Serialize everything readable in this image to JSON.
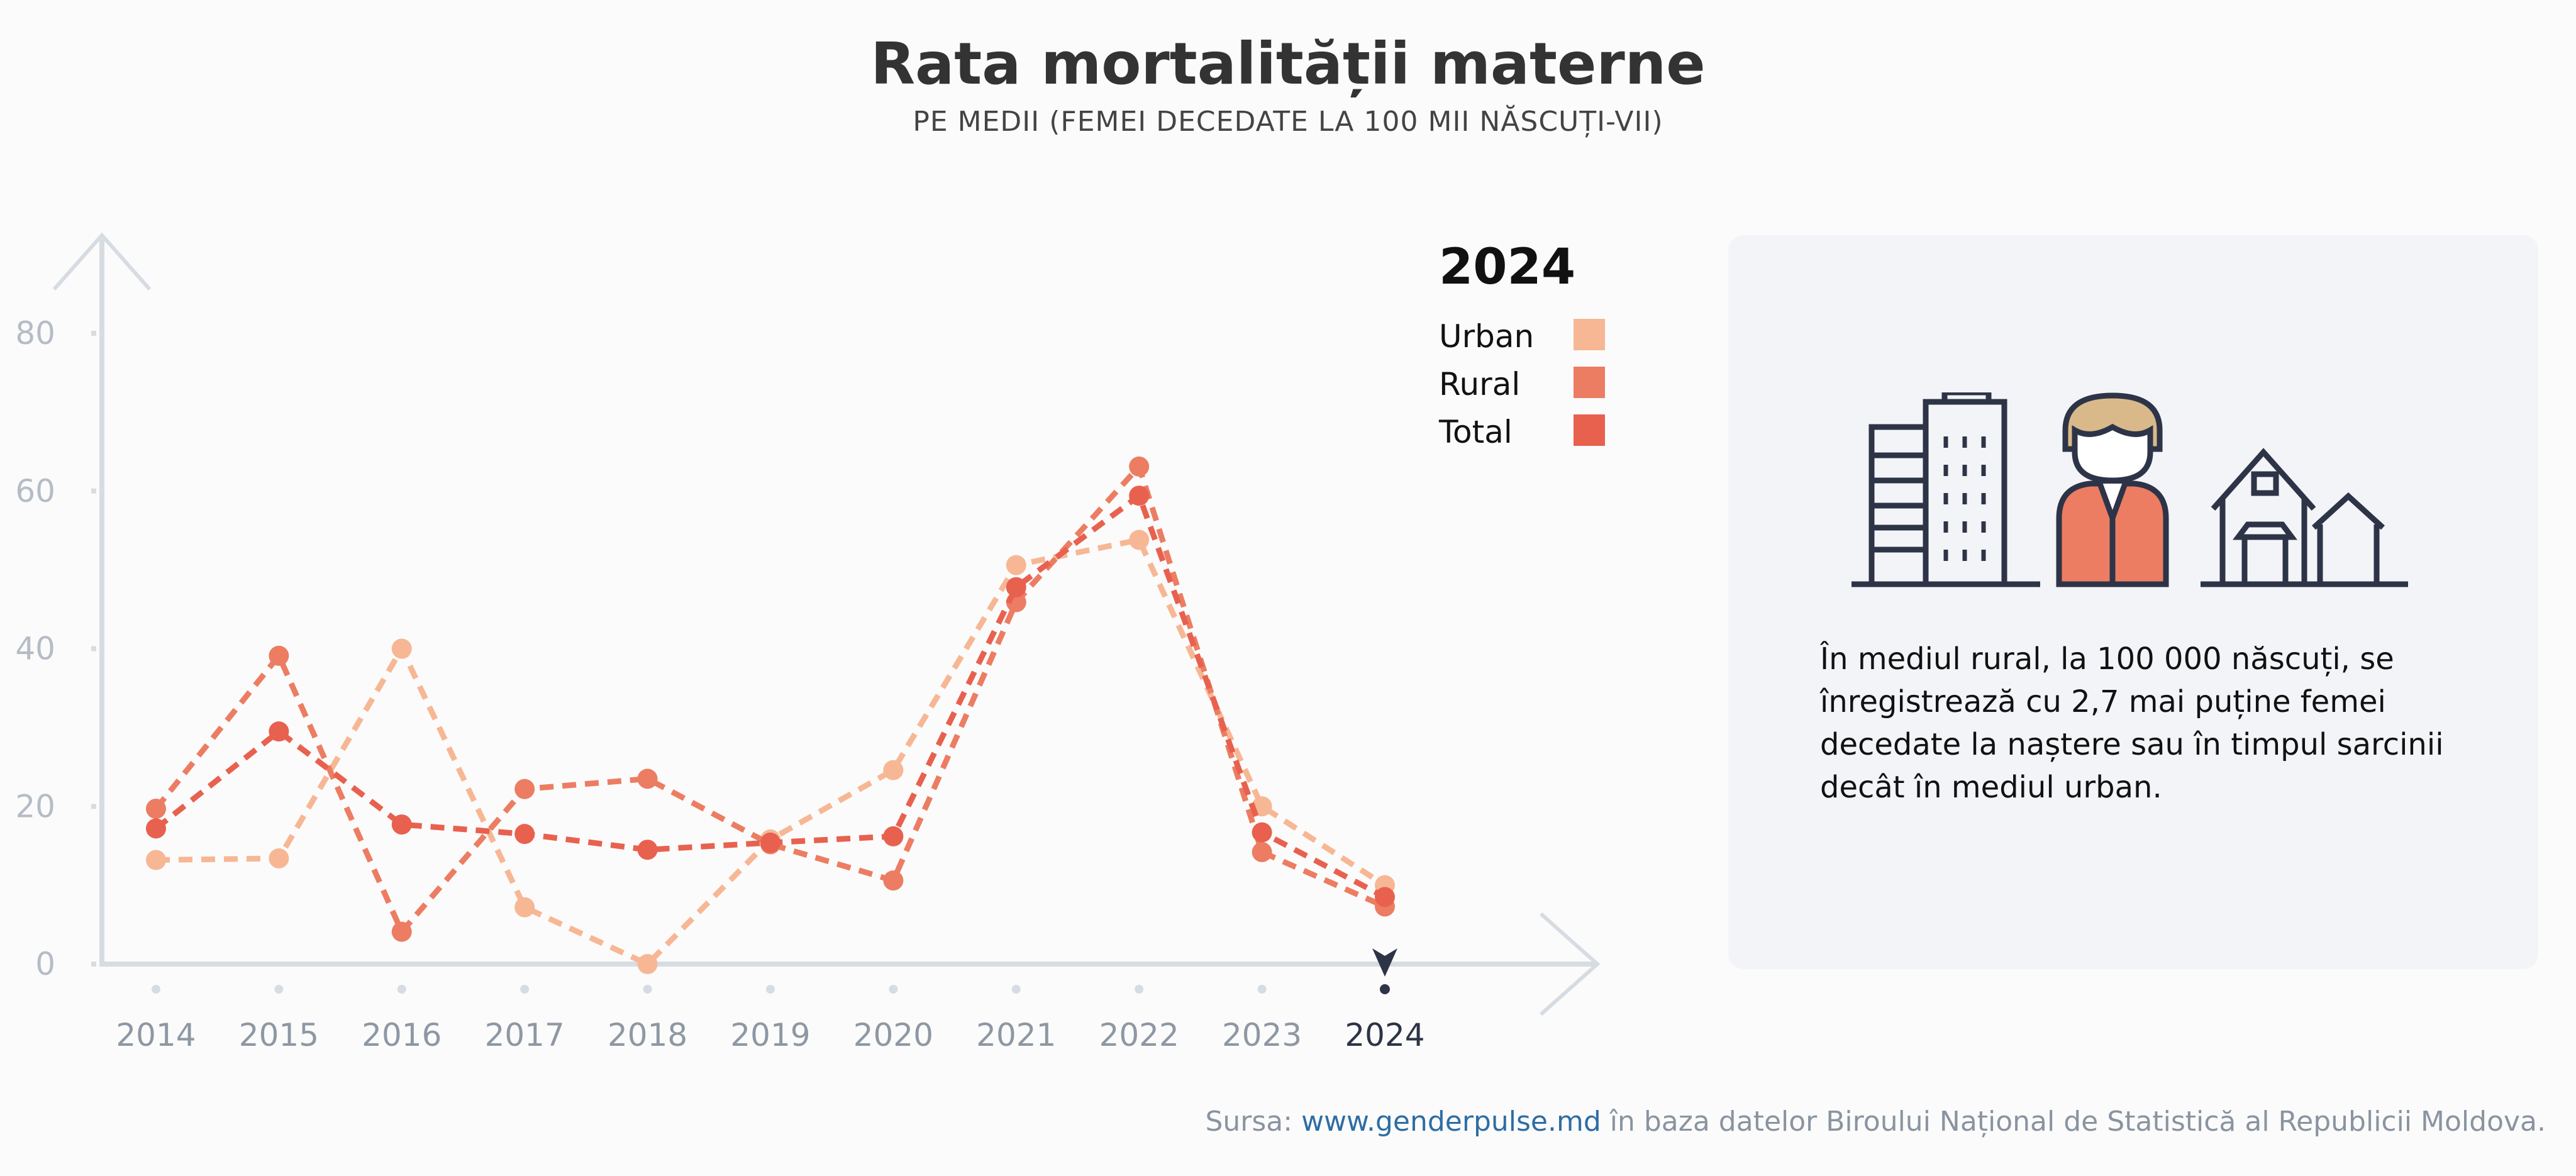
{
  "title": "Rata mortalității materne",
  "subtitle": "PE MEDII (FEMEI DECEDATE LA 100 MII NĂSCUȚI-VII)",
  "chart_data": {
    "type": "line",
    "title": "Rata mortalității materne",
    "subtitle": "PE MEDII (FEMEI DECEDATE LA 100 MII NĂSCUȚI-VII)",
    "xlabel": "",
    "ylabel": "",
    "x": [
      "2014",
      "2015",
      "2016",
      "2017",
      "2018",
      "2019",
      "2020",
      "2021",
      "2022",
      "2023",
      "2024"
    ],
    "ylim": [
      0,
      80
    ],
    "yticks": [
      0,
      20,
      40,
      60,
      80
    ],
    "grid": false,
    "legend_position": "top-right",
    "legend_title": "2024",
    "highlighted_x": "2024",
    "series": [
      {
        "name": "Urban",
        "color": "#f7b794",
        "values": [
          13.2,
          13.4,
          40.0,
          7.2,
          0.0,
          15.8,
          24.6,
          50.6,
          53.8,
          20.0,
          10.0
        ]
      },
      {
        "name": "Rural",
        "color": "#ec7d62",
        "values": [
          19.7,
          39.1,
          4.1,
          22.2,
          23.5,
          15.2,
          10.6,
          45.9,
          63.1,
          14.2,
          7.3
        ]
      },
      {
        "name": "Total",
        "color": "#e8614f",
        "values": [
          17.2,
          29.5,
          17.7,
          16.5,
          14.5,
          15.4,
          16.2,
          47.8,
          59.4,
          16.7,
          8.5
        ]
      }
    ]
  },
  "panel": {
    "icons": [
      "city-buildings-icon",
      "woman-avatar-icon",
      "village-house-icon"
    ],
    "text": "În mediul rural, la 100 000 născuți, se înregistrează cu 2,7 mai puține femei decedate la naștere sau în timpul sarcinii decât în mediul urban."
  },
  "source": {
    "prefix": "Sursa: ",
    "link": "www.genderpulse.md",
    "suffix": " în baza datelor Biroului Național de Statistică al Republicii Moldova."
  }
}
